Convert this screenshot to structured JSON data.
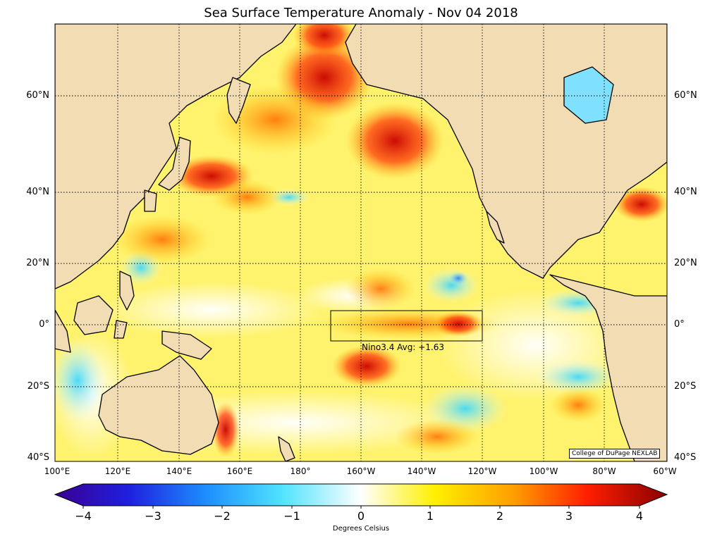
{
  "title": "Sea Surface Temperature Anomaly - Nov 04 2018",
  "lat_labels": [
    "60°N",
    "40°N",
    "20°N",
    "0°",
    "20°S",
    "40°S"
  ],
  "lon_labels": [
    "100°E",
    "120°E",
    "140°E",
    "160°E",
    "180°",
    "160°W",
    "140°W",
    "120°W",
    "100°W",
    "80°W",
    "60°W"
  ],
  "nino_label": "Nino3.4 Avg: +1.63",
  "credit": "College of DuPage NEXLAB",
  "colorbar": {
    "ticks": [
      "−4",
      "−3",
      "−2",
      "−1",
      "0",
      "1",
      "2",
      "3",
      "4"
    ],
    "units": "Degrees Celsius"
  },
  "colors": {
    "land": "#f2dcb4",
    "ocean_base": "#fff06a"
  }
}
